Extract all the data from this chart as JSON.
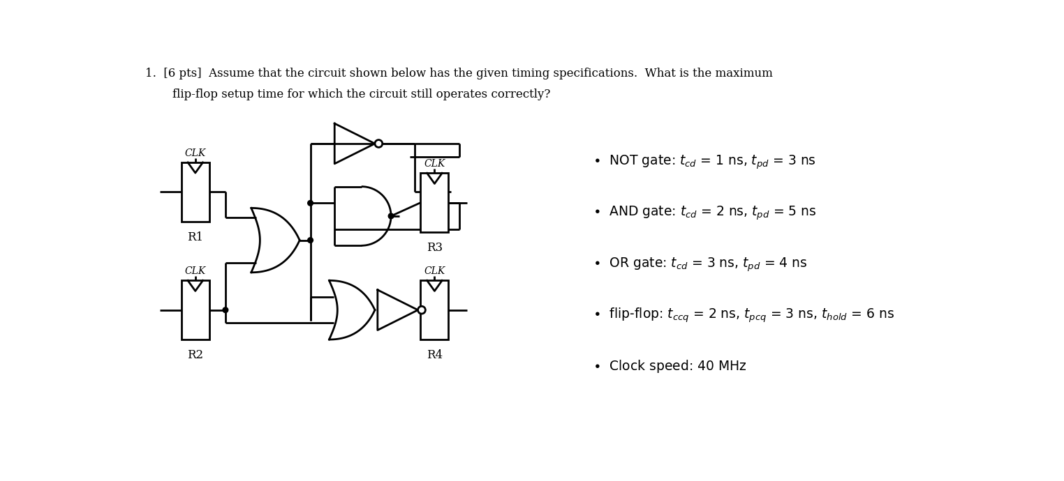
{
  "title_line1": "1.  [6 pts]  Assume that the circuit shown below has the given timing specifications.  What is the maximum",
  "title_line2": "flip-flop setup time for which the circuit still operates correctly?",
  "bg_color": "#ffffff",
  "text_color": "#000000",
  "lw": 2.0,
  "circuit_scale": 1.0,
  "bullet1": "$\\bullet$  NOT gate: $t_{cd}$ = 1 ns, $t_{pd}$ = 3 ns",
  "bullet2": "$\\bullet$  AND gate: $t_{cd}$ = 2 ns, $t_{pd}$ = 5 ns",
  "bullet3": "$\\bullet$  OR gate: $t_{cd}$ = 3 ns, $t_{pd}$ = 4 ns",
  "bullet4": "$\\bullet$  flip-flop: $t_{ccq}$ = 2 ns, $t_{pcq}$ = 3 ns, $t_{hold}$ = 6 ns",
  "bullet5": "$\\bullet$  Clock speed: 40 MHz",
  "bx": 8.3,
  "by1": 4.9,
  "by2": 4.25,
  "by3": 3.6,
  "by4": 2.95,
  "by5": 2.3,
  "bfs": 13.5
}
